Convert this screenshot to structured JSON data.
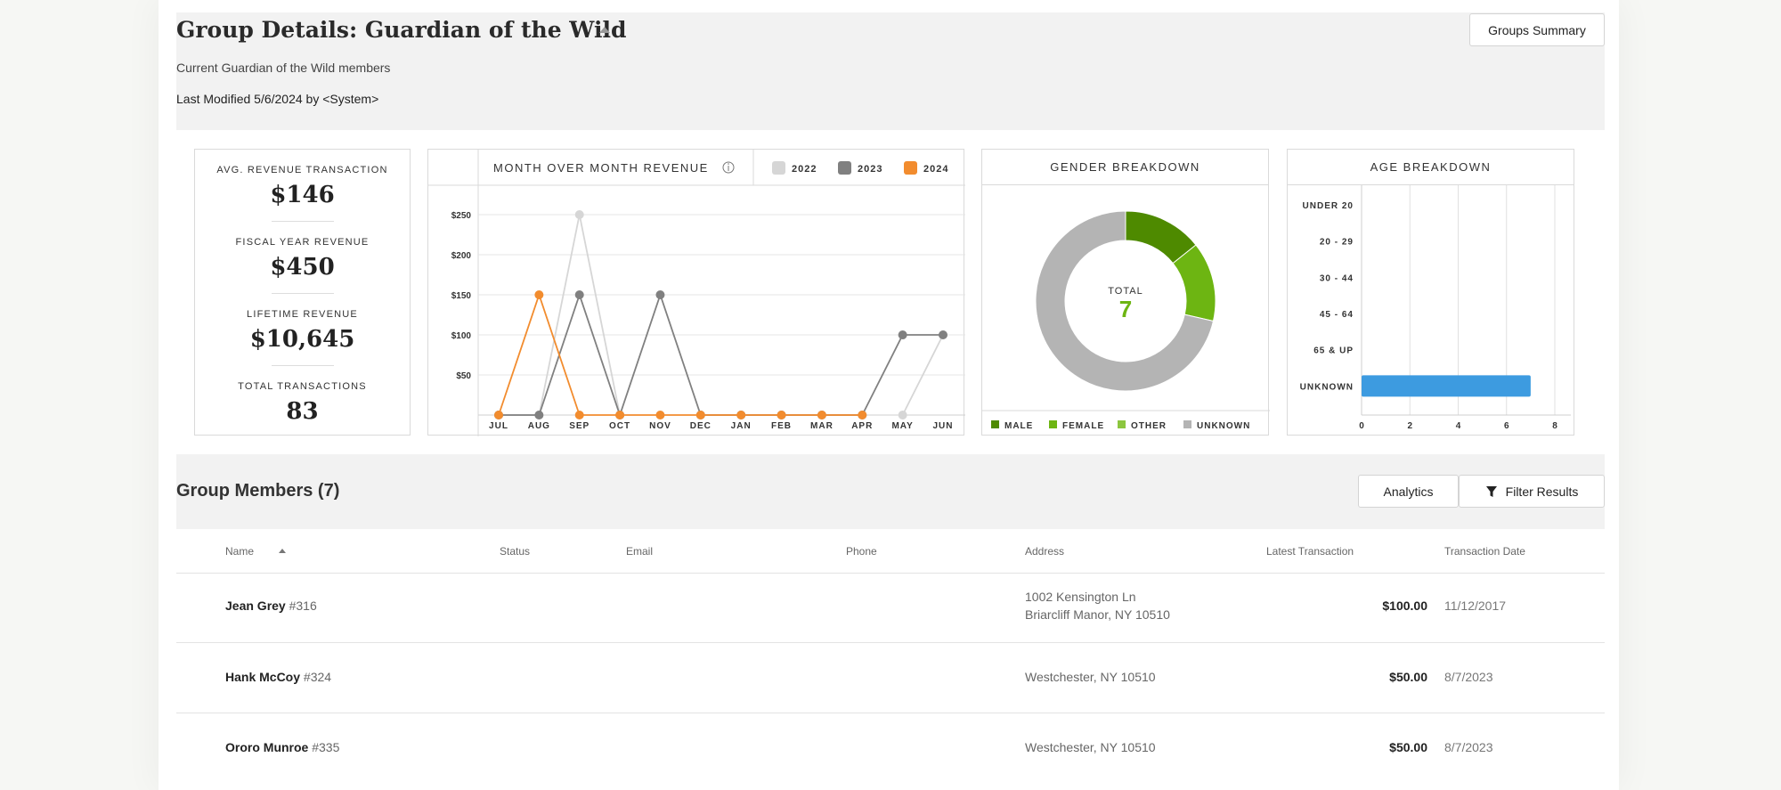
{
  "header": {
    "title": "Group Details: Guardian of the Wild",
    "subtitle": "Current Guardian of the Wild members",
    "modified": "Last Modified 5/6/2024 by <System>",
    "summary_button": "Groups Summary"
  },
  "stats": [
    {
      "label": "AVG. REVENUE TRANSACTION",
      "value": "$146"
    },
    {
      "label": "FISCAL YEAR REVENUE",
      "value": "$450"
    },
    {
      "label": "LIFETIME REVENUE",
      "value": "$10,645"
    },
    {
      "label": "TOTAL TRANSACTIONS",
      "value": "83"
    }
  ],
  "chart_data": [
    {
      "type": "line",
      "title": "MONTH OVER MONTH REVENUE",
      "categories": [
        "JUL",
        "AUG",
        "SEP",
        "OCT",
        "NOV",
        "DEC",
        "JAN",
        "FEB",
        "MAR",
        "APR",
        "MAY",
        "JUN"
      ],
      "y_ticks": [
        "$50",
        "$100",
        "$150",
        "$200",
        "$250"
      ],
      "ylim": [
        0,
        250
      ],
      "grid": true,
      "legend_position": "top-right",
      "series": [
        {
          "name": "2022",
          "color": "#d6d6d6",
          "values": [
            0,
            0,
            250,
            0,
            null,
            null,
            null,
            null,
            null,
            null,
            0,
            100
          ]
        },
        {
          "name": "2023",
          "color": "#808080",
          "values": [
            0,
            0,
            150,
            0,
            150,
            0,
            0,
            0,
            0,
            0,
            100,
            100
          ]
        },
        {
          "name": "2024",
          "color": "#f28c2e",
          "values": [
            0,
            150,
            0,
            0,
            0,
            0,
            0,
            0,
            0,
            0,
            null,
            null
          ]
        }
      ]
    },
    {
      "type": "pie",
      "title": "GENDER BREAKDOWN",
      "center_label": "TOTAL",
      "center_value": "7",
      "categories": [
        "MALE",
        "FEMALE",
        "OTHER",
        "UNKNOWN"
      ],
      "values": [
        1,
        1,
        0,
        5
      ],
      "colors": [
        "#4e8a00",
        "#6db512",
        "#8cc63f",
        "#b4b4b4"
      ],
      "legend_position": "bottom"
    },
    {
      "type": "bar",
      "orientation": "horizontal",
      "title": "AGE BREAKDOWN",
      "categories": [
        "UNDER 20",
        "20 - 29",
        "30 - 44",
        "45 - 64",
        "65 & UP",
        "UNKNOWN"
      ],
      "values": [
        0,
        0,
        0,
        0,
        0,
        7
      ],
      "x_ticks": [
        "0",
        "2",
        "4",
        "6",
        "8"
      ],
      "xlim": [
        0,
        8
      ],
      "color": "#3d9be0",
      "grid": true
    }
  ],
  "members": {
    "title": "Group Members (7)",
    "analytics_button": "Analytics",
    "filter_button": "Filter Results",
    "columns": [
      "Name",
      "Status",
      "Email",
      "Phone",
      "Address",
      "Latest Transaction",
      "Transaction Date"
    ],
    "rows": [
      {
        "name": "Jean Grey",
        "id": "#316",
        "address1": "1002 Kensington Ln",
        "address2": "Briarcliff Manor, NY 10510",
        "amount": "$100.00",
        "date": "11/12/2017"
      },
      {
        "name": "Hank McCoy",
        "id": "#324",
        "address1": "Westchester, NY 10510",
        "address2": "",
        "amount": "$50.00",
        "date": "8/7/2023"
      },
      {
        "name": "Ororo Munroe",
        "id": "#335",
        "address1": "Westchester, NY 10510",
        "address2": "",
        "amount": "$50.00",
        "date": "8/7/2023"
      }
    ]
  }
}
